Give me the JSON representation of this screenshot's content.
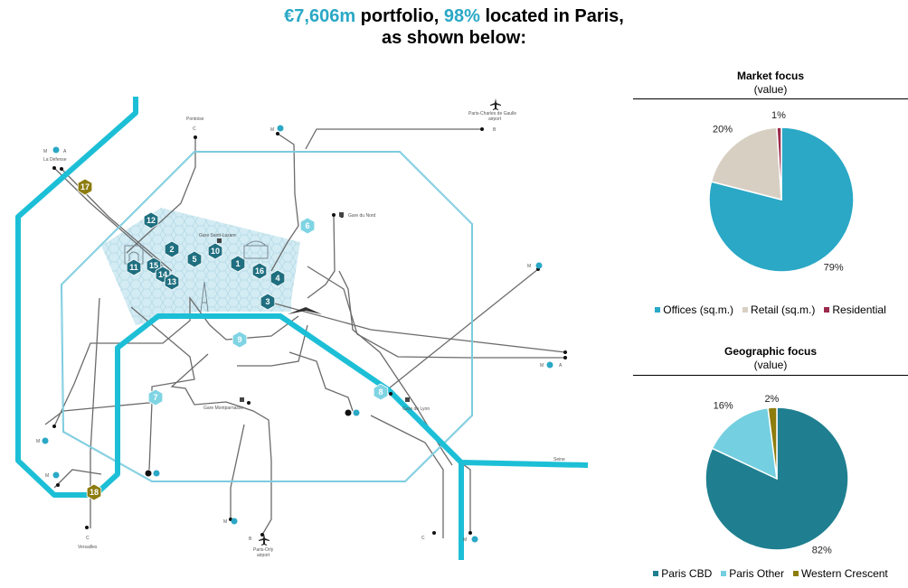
{
  "header": {
    "value": "€7,606m",
    "text1": " portfolio, ",
    "pct": "98%",
    "text2": " located in Paris,",
    "line2": "as shown below:"
  },
  "colors": {
    "accent": "#2aa8c6",
    "offices": "#2aa8c6",
    "retail": "#d8cfc3",
    "residential": "#9c2a4c",
    "paris_cbd": "#1f7f90",
    "paris_other": "#74cfe0",
    "western_crescent": "#8d7c0e",
    "metro_line": "#1cbfd6",
    "hex_dark": "#1f6f80",
    "hex_light": "#7fd4e3",
    "hex_olive": "#8d7c0e"
  },
  "map": {
    "labels": {
      "pontoise": "Pontoise",
      "cdg": "Paris-Charles de Gaulle",
      "airport1": "airport",
      "la_defense": "La Défense",
      "gare_nord": "Gare du Nord",
      "gare_saint_lazare": "Gare Saint-Lazare",
      "gare_lyon": "Gare de Lyon",
      "gare_montparnasse": "Gare Montparnasse",
      "versailles": "Versailles",
      "orly": "Paris-Orly",
      "airport2": "airport",
      "seine": "Seine",
      "m": "M",
      "a": "A",
      "b": "B",
      "c": "C"
    },
    "assets": [
      {
        "id": "12",
        "style": "dark"
      },
      {
        "id": "2",
        "style": "dark"
      },
      {
        "id": "10",
        "style": "dark"
      },
      {
        "id": "5",
        "style": "dark"
      },
      {
        "id": "1",
        "style": "dark"
      },
      {
        "id": "16",
        "style": "dark"
      },
      {
        "id": "4",
        "style": "dark"
      },
      {
        "id": "11",
        "style": "dark"
      },
      {
        "id": "15",
        "style": "dark"
      },
      {
        "id": "14",
        "style": "dark"
      },
      {
        "id": "13",
        "style": "dark"
      },
      {
        "id": "3",
        "style": "dark"
      },
      {
        "id": "6",
        "style": "light"
      },
      {
        "id": "9",
        "style": "light"
      },
      {
        "id": "7",
        "style": "light"
      },
      {
        "id": "8",
        "style": "light"
      },
      {
        "id": "17",
        "style": "olive"
      },
      {
        "id": "18",
        "style": "olive"
      }
    ]
  },
  "chart_data": [
    {
      "type": "pie",
      "title": "Market focus",
      "subtitle": "(value)",
      "categories": [
        "Offices (sq.m.)",
        "Retail (sq.m.)",
        "Residential"
      ],
      "values": [
        79,
        20,
        1
      ],
      "labels": [
        "79%",
        "20%",
        "1%"
      ],
      "colors": [
        "#2aa8c6",
        "#d8cfc3",
        "#9c2a4c"
      ],
      "legend": "bottom"
    },
    {
      "type": "pie",
      "title": "Geographic focus",
      "subtitle": "(value)",
      "categories": [
        "Paris CBD",
        "Paris Other",
        "Western Crescent"
      ],
      "values": [
        82,
        16,
        2
      ],
      "labels": [
        "82%",
        "16%",
        "2%"
      ],
      "colors": [
        "#1f7f90",
        "#74cfe0",
        "#8d7c0e"
      ],
      "legend": "bottom"
    }
  ]
}
